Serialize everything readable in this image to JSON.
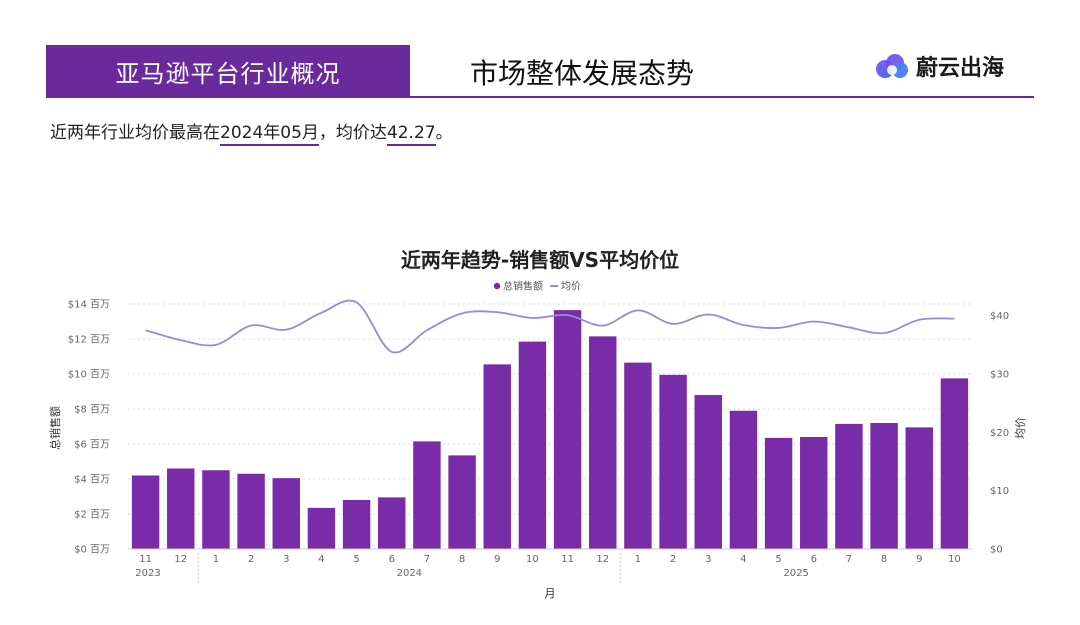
{
  "header": {
    "section_title": "亚马逊平台行业概况",
    "page_title": "市场整体发展态势",
    "logo_text": "蔚云出海"
  },
  "summary": {
    "prefix": "近两年行业均价最高在",
    "peak_month": "2024年05月",
    "mid": "，均价达",
    "peak_value": "42.27",
    "suffix": "。"
  },
  "colors": {
    "brand": "#6a2a9c",
    "bar": "#7a2ba8",
    "line": "#9a8ad6"
  },
  "chart_data": {
    "type": "bar",
    "title": "近两年趋势-销售额VS平均价位",
    "legend": [
      {
        "name": "总销售额",
        "marker": "dot"
      },
      {
        "name": "均价",
        "marker": "line"
      }
    ],
    "legend_position": "top-center",
    "xlabel": "月",
    "ylabel_left": "总销售额",
    "ylabel_right": "均价",
    "categories": [
      "11",
      "12",
      "1",
      "2",
      "3",
      "4",
      "5",
      "6",
      "7",
      "8",
      "9",
      "10",
      "11",
      "12",
      "1",
      "2",
      "3",
      "4",
      "5",
      "6",
      "7",
      "8",
      "9",
      "10"
    ],
    "years": [
      {
        "label": "2023",
        "start": 0,
        "end": 1
      },
      {
        "label": "2024",
        "start": 2,
        "end": 13
      },
      {
        "label": "2025",
        "start": 14,
        "end": 23
      }
    ],
    "series": [
      {
        "name": "总销售额",
        "type": "bar",
        "axis": "left",
        "unit": "百万",
        "values": [
          4.2,
          4.6,
          4.5,
          4.3,
          4.05,
          2.35,
          2.8,
          2.95,
          6.15,
          5.35,
          10.55,
          11.85,
          13.65,
          12.15,
          10.65,
          9.95,
          8.8,
          7.9,
          6.35,
          6.4,
          7.15,
          7.2,
          6.95,
          9.75
        ]
      },
      {
        "name": "均价",
        "type": "line",
        "axis": "right",
        "values": [
          37.5,
          35.8,
          35.0,
          38.3,
          37.6,
          40.5,
          42.27,
          33.8,
          37.5,
          40.4,
          40.6,
          39.6,
          40.1,
          38.3,
          40.9,
          38.6,
          40.2,
          38.4,
          37.9,
          39.0,
          38.0,
          37.0,
          39.3,
          39.5
        ]
      }
    ],
    "ylim_left": [
      0,
      14
    ],
    "yticks_left": [
      "$0 百万",
      "$2 百万",
      "$4 百万",
      "$6 百万",
      "$8 百万",
      "$10 百万",
      "$12 百万",
      "$14 百万"
    ],
    "ylim_right": [
      0,
      42
    ],
    "yticks_right_values": [
      0,
      10,
      20,
      30,
      40
    ],
    "yticks_right": [
      "$0",
      "$10",
      "$20",
      "$30",
      "$40"
    ],
    "grid": true
  }
}
